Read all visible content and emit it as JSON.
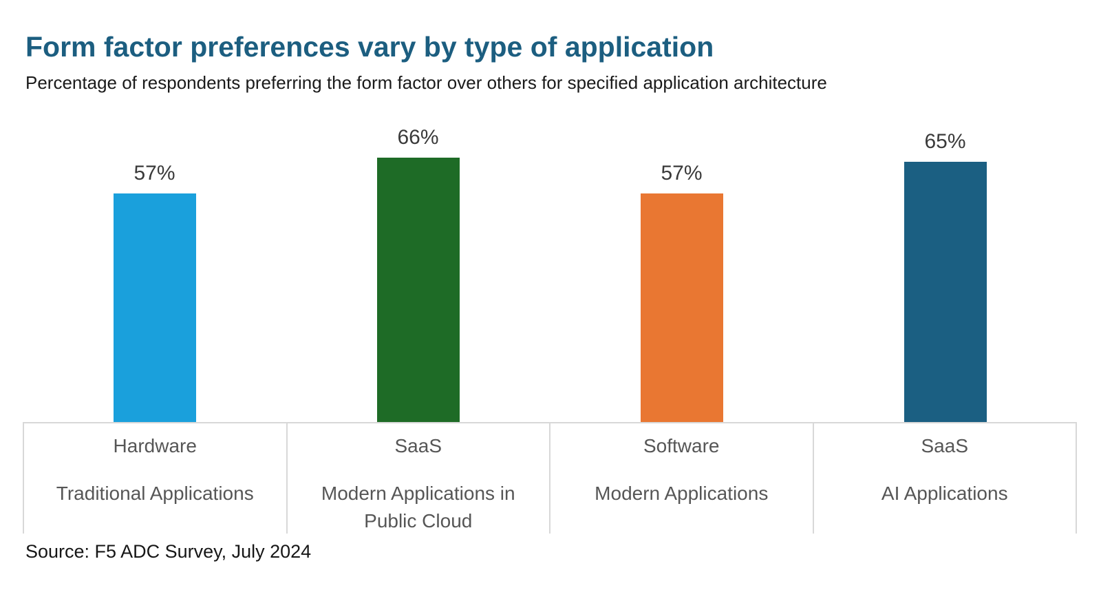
{
  "header": {
    "title": "Form factor preferences vary by type of application",
    "subtitle": "Percentage of respondents preferring the form factor over others for specified application architecture"
  },
  "chart_data": {
    "type": "bar",
    "title": "Form factor preferences vary by type of application",
    "subtitle": "Percentage of respondents preferring the form factor over others for specified application architecture",
    "unit": "%",
    "ylim": [
      0,
      100
    ],
    "grid": false,
    "axes_visible": false,
    "value_labels_position": "above-bar",
    "legend": "none",
    "categories": [
      "Traditional Applications",
      "Modern Applications in Public Cloud",
      "Modern Applications",
      "AI Applications"
    ],
    "values": [
      57,
      66,
      57,
      65
    ],
    "bars": [
      {
        "form_factor": "Hardware",
        "application_type": "Traditional Applications",
        "value": 57,
        "label": "57%",
        "color": "#1AA0DC"
      },
      {
        "form_factor": "SaaS",
        "application_type": "Modern Applications in Public Cloud",
        "value": 66,
        "label": "66%",
        "color": "#1E6B26"
      },
      {
        "form_factor": "Software",
        "application_type": "Modern Applications",
        "value": 57,
        "label": "57%",
        "color": "#E97732"
      },
      {
        "form_factor": "SaaS",
        "application_type": "AI Applications",
        "value": 65,
        "label": "65%",
        "color": "#1B5F82"
      }
    ],
    "source": "Source: F5 ADC Survey, July 2024"
  },
  "footer": {
    "source": "Source: F5 ADC Survey, July 2024"
  },
  "colors": {
    "title": "#1C5E80",
    "subtitle": "#1A1A1A",
    "value_label": "#3A3A3A",
    "category_text": "#565656",
    "table_border": "#D8D8D8",
    "background": "#FFFFFF"
  }
}
